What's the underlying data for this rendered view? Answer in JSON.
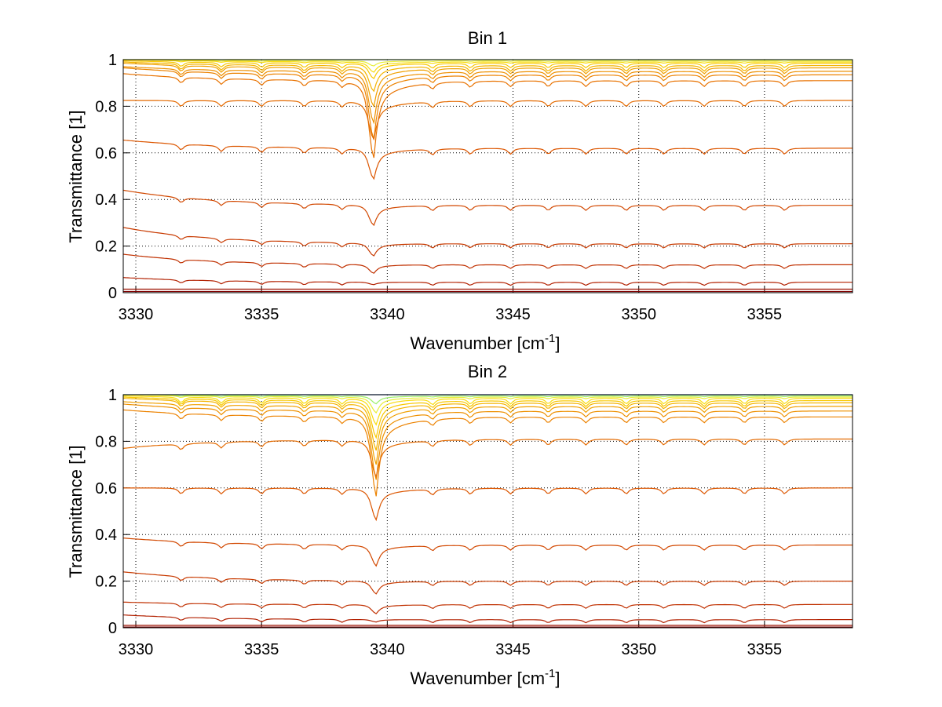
{
  "chart_data": [
    {
      "type": "line",
      "title": "Bin 1",
      "xlabel": "Wavenumber [cm",
      "xlabel_sup": "-1",
      "xlabel_end": "]",
      "ylabel": "Transmittance [1]",
      "xlim": [
        3329.5,
        3358.5
      ],
      "ylim": [
        0,
        1
      ],
      "xticks": [
        "3330",
        "3335",
        "3340",
        "3345",
        "3350",
        "3355"
      ],
      "yticks": [
        "0",
        "0.2",
        "0.4",
        "0.6",
        "0.8",
        "1"
      ],
      "grid": true,
      "baselines": [
        1.0,
        0.995,
        0.99,
        0.985,
        0.975,
        0.965,
        0.95,
        0.935,
        0.91,
        0.825,
        0.62,
        0.375,
        0.21,
        0.12,
        0.045,
        0.015,
        0.005
      ],
      "start_offsets": [
        0.0,
        0.005,
        0.01,
        0.01,
        0.015,
        0.02,
        0.02,
        0.03,
        0.03,
        0.0,
        0.035,
        0.065,
        0.07,
        0.045,
        0.02,
        0.0,
        0.0
      ],
      "main_line_center": 3339.4,
      "main_line_depths": [
        0.0,
        0.02,
        0.04,
        0.06,
        0.1,
        0.15,
        0.2,
        0.25,
        0.3,
        0.15,
        0.12,
        0.08,
        0.05,
        0.035,
        0.01,
        0.0,
        0.0
      ],
      "minor_lines": [
        3331.8,
        3333.4,
        3335.0,
        3336.7,
        3338.2,
        3341.8,
        3343.3,
        3344.9,
        3346.4,
        3347.9,
        3349.5,
        3351.0,
        3352.6,
        3354.2,
        3355.8
      ],
      "colors": [
        "#9cf06a",
        "#e8ee3a",
        "#f8dc10",
        "#f8c800",
        "#f4b400",
        "#f0a000",
        "#ee9000",
        "#ec8200",
        "#e87200",
        "#e46a00",
        "#dc5600",
        "#d24800",
        "#c83a00",
        "#c03000",
        "#b22000",
        "#9c1000",
        "#800000"
      ]
    },
    {
      "type": "line",
      "title": "Bin 2",
      "xlabel": "Wavenumber [cm",
      "xlabel_sup": "-1",
      "xlabel_end": "]",
      "ylabel": "Transmittance [1]",
      "xlim": [
        3329.5,
        3358.5
      ],
      "ylim": [
        0,
        1
      ],
      "xticks": [
        "3330",
        "3335",
        "3340",
        "3345",
        "3350",
        "3355"
      ],
      "yticks": [
        "0",
        "0.2",
        "0.4",
        "0.6",
        "0.8",
        "1"
      ],
      "grid": true,
      "baselines": [
        1.0,
        0.995,
        0.99,
        0.985,
        0.975,
        0.965,
        0.95,
        0.93,
        0.905,
        0.81,
        0.6,
        0.355,
        0.2,
        0.1,
        0.035,
        0.01,
        0.003
      ],
      "start_offsets": [
        0.0,
        0.005,
        0.01,
        0.01,
        0.015,
        0.02,
        0.02,
        0.03,
        0.03,
        -0.04,
        0.0,
        0.03,
        0.04,
        0.01,
        0.02,
        0.0,
        0.0
      ],
      "main_line_center": 3339.5,
      "main_line_depths": [
        0.0,
        0.03,
        0.06,
        0.1,
        0.14,
        0.18,
        0.22,
        0.26,
        0.3,
        0.14,
        0.12,
        0.08,
        0.05,
        0.035,
        0.01,
        0.0,
        0.0
      ],
      "minor_lines": [
        3331.8,
        3333.4,
        3335.0,
        3336.7,
        3338.2,
        3341.8,
        3343.3,
        3344.9,
        3346.4,
        3347.9,
        3349.5,
        3351.0,
        3352.6,
        3354.2,
        3355.8
      ],
      "colors": [
        "#1e5cc0",
        "#9cf06a",
        "#e8ee3a",
        "#f8dc10",
        "#f8c800",
        "#f4b400",
        "#f0a000",
        "#ee9000",
        "#ec8200",
        "#e46a00",
        "#dc5600",
        "#d24800",
        "#c83a00",
        "#c03000",
        "#b22000",
        "#9c1000",
        "#800000"
      ]
    }
  ]
}
